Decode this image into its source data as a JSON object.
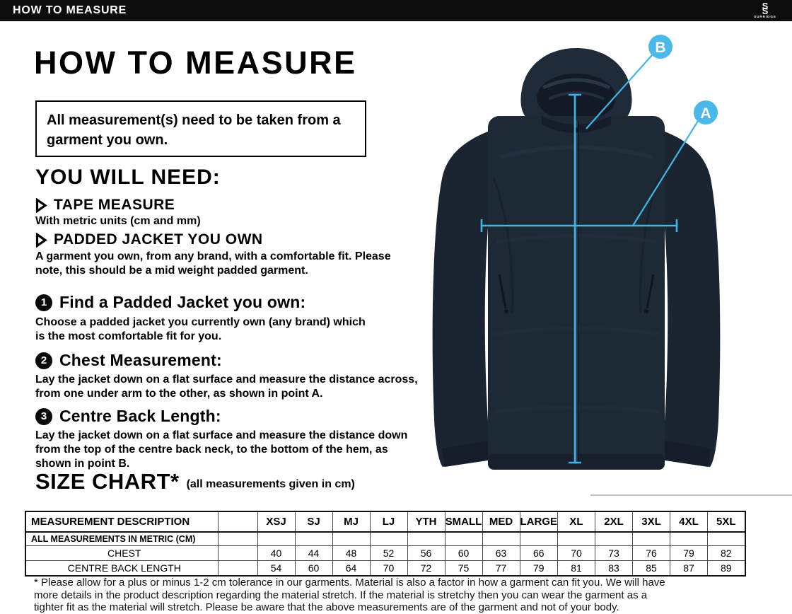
{
  "top_bar": {
    "title": "HOW TO MEASURE",
    "brand": "SURRIDGE"
  },
  "header": {
    "title": "HOW TO MEASURE"
  },
  "notice": {
    "text": "All measurement(s) need to be taken from a garment you own."
  },
  "you_will_need": {
    "title": "YOU WILL NEED:",
    "items": [
      {
        "label": "TAPE MEASURE",
        "description": "With metric units (cm and mm)"
      },
      {
        "label": "PADDED JACKET YOU OWN",
        "description": "A garment you own, from any brand, with a comfortable fit. Please note, this should be a mid weight padded garment."
      }
    ]
  },
  "steps": [
    {
      "number": "1",
      "title": "Find a Padded Jacket you own:",
      "description": "Choose a padded jacket you currently own (any brand) which is the most comfortable fit for you."
    },
    {
      "number": "2",
      "title": "Chest Measurement:",
      "description": "Lay the jacket down on a flat surface and measure the distance across, from one under arm to the other, as shown in point A."
    },
    {
      "number": "3",
      "title": "Centre Back Length:",
      "description": "Lay the jacket down on a flat surface and measure the distance down from the top of the centre back neck, to the bottom of the hem, as shown in point B."
    }
  ],
  "size_chart": {
    "title": "SIZE CHART*",
    "subtitle": "(all measurements given in cm)",
    "table": {
      "header": [
        "MEASUREMENT DESCRIPTION",
        "",
        "XSJ",
        "SJ",
        "MJ",
        "LJ",
        "YTH",
        "SMALL",
        "MED",
        "LARGE",
        "XL",
        "2XL",
        "3XL",
        "4XL",
        "5XL"
      ],
      "rows": [
        [
          "ALL MEASUREMENTS IN METRIC (CM)",
          "",
          "",
          "",
          "",
          "",
          "",
          "",
          "",
          "",
          "",
          "",
          "",
          "",
          ""
        ],
        [
          "CHEST",
          "",
          "40",
          "44",
          "48",
          "52",
          "56",
          "60",
          "63",
          "66",
          "70",
          "73",
          "76",
          "79",
          "82"
        ],
        [
          "CENTRE BACK LENGTH",
          "",
          "54",
          "60",
          "64",
          "70",
          "72",
          "75",
          "77",
          "79",
          "81",
          "83",
          "85",
          "87",
          "89"
        ]
      ]
    }
  },
  "footnote": {
    "lines": [
      "* Please allow for a plus or minus 1-2 cm tolerance in our garments. Material is also a factor in how a garment can fit you. We will have",
      "more details in the product description regarding the material stretch.  If the material is stretchy then you can wear the garment as a",
      "tighter fit as the material will stretch.  Please be aware that the above measurements are of the garment and not of your body."
    ]
  },
  "diagram": {
    "point_a": "A",
    "point_b": "B"
  },
  "colors": {
    "accent_cyan": "#41b5e8",
    "badge_cyan": "#4bb8ea",
    "bar_black": "#0d0d0d",
    "jacket_navy": "#1e2936"
  }
}
